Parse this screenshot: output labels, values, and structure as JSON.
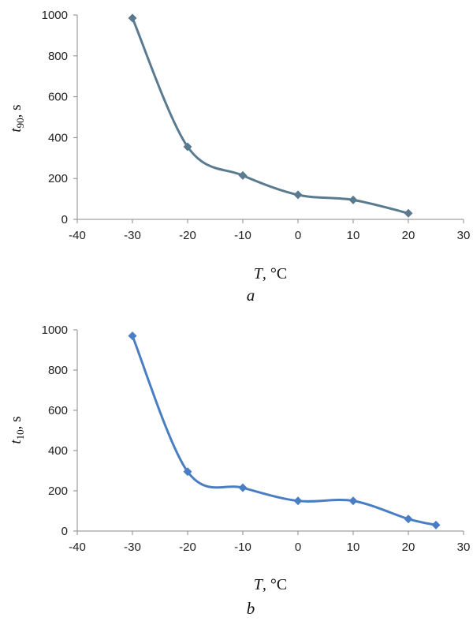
{
  "chart_data": [
    {
      "type": "line",
      "panel_label": "a",
      "ylabel": {
        "main": "t",
        "sub": "90",
        "unit": ", s"
      },
      "xlabel": {
        "main": "T",
        "unit": ", °C"
      },
      "xlim": [
        -40,
        30
      ],
      "ylim": [
        0,
        1000
      ],
      "xticks": [
        -40,
        -30,
        -20,
        -10,
        0,
        10,
        20,
        30
      ],
      "yticks": [
        0,
        200,
        400,
        600,
        800,
        1000
      ],
      "grid": false,
      "color": "#5a7a90",
      "series": [
        {
          "x": [
            -30,
            -20,
            -10,
            0,
            10,
            20
          ],
          "y": [
            985,
            355,
            215,
            120,
            95,
            30
          ]
        }
      ]
    },
    {
      "type": "line",
      "panel_label": "b",
      "ylabel": {
        "main": "t",
        "sub": "10",
        "unit": ", s"
      },
      "xlabel": {
        "main": "T",
        "unit": ", °C"
      },
      "xlim": [
        -40,
        30
      ],
      "ylim": [
        0,
        1000
      ],
      "xticks": [
        -40,
        -30,
        -20,
        -10,
        0,
        10,
        20,
        30
      ],
      "yticks": [
        0,
        200,
        400,
        600,
        800,
        1000
      ],
      "grid": false,
      "color": "#4a7ec4",
      "series": [
        {
          "x": [
            -30,
            -20,
            -10,
            0,
            10,
            20,
            25
          ],
          "y": [
            970,
            295,
            215,
            150,
            150,
            60,
            30
          ]
        }
      ]
    }
  ]
}
